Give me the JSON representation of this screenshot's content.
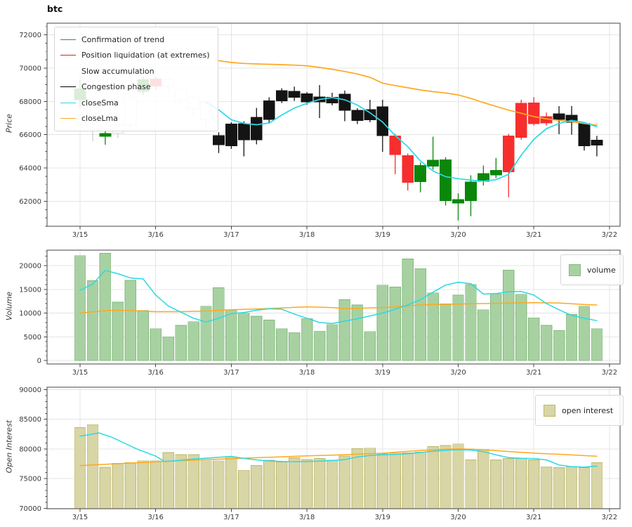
{
  "title": "btc",
  "axes": {
    "x_ticklabels": [
      "3/15",
      "3/16",
      "3/17",
      "3/18",
      "3/19",
      "3/20",
      "3/21",
      "3/22"
    ],
    "price": {
      "label": "Price",
      "ticks": [
        62000,
        64000,
        66000,
        68000,
        70000,
        72000
      ]
    },
    "volume": {
      "label": "Volume",
      "ticks": [
        0,
        5000,
        10000,
        15000,
        20000
      ]
    },
    "open_interest": {
      "label": "Open Interest",
      "ticks": [
        70000,
        75000,
        80000,
        85000,
        90000
      ]
    }
  },
  "legends": {
    "price": [
      {
        "label": "Confirmation of trend",
        "color": "#3b8c3e"
      },
      {
        "label": "Position liquidation (at extremes)",
        "color": "#b33028"
      },
      {
        "label": "Slow accumulation",
        "color": null
      },
      {
        "label": "Congestion phase",
        "color": "#000000"
      },
      {
        "label": "closeSma",
        "color": "#2bd9e4"
      },
      {
        "label": "closeLma",
        "color": "#ffa81f"
      }
    ],
    "volume": {
      "label": "volume"
    },
    "open_interest": {
      "label": "open interest"
    }
  },
  "colors": {
    "grid": "#e4e4e4",
    "spine": "#444444",
    "tick_label": "#3a3a3a",
    "sma_line": "#2bd9e4",
    "lma_line": "#ffa81f",
    "volume_bar_fill": "#a8d1a2",
    "volume_bar_edge": "#82ba7c",
    "oi_bar_fill": "#d8d5a6",
    "oi_bar_edge": "#bdb76b",
    "candles": {
      "confirmation_of_trend": {
        "fill": "#0a870a",
        "edge": "#0a870a",
        "wick": "#0a870a"
      },
      "position_liquidation": {
        "fill": "#f62e2e",
        "edge": "#f62e2e",
        "wick": "#f62e2e"
      },
      "congestion": {
        "fill": "#141414",
        "edge": "#141414",
        "wick": "#141414"
      },
      "slow_accumulation": {
        "fill": "#ffffff",
        "edge": "#d9d9d9",
        "wick": "#cfcfcf"
      }
    }
  },
  "chart_data": {
    "type": "candlestick",
    "title": "btc",
    "x_axis": {
      "start": "3/15",
      "end": "3/22",
      "bars_per_day": 6,
      "tick_labels": [
        "3/15",
        "3/16",
        "3/17",
        "3/18",
        "3/19",
        "3/20",
        "3/21",
        "3/22"
      ]
    },
    "panels": {
      "price": {
        "ylabel": "Price",
        "ylim": [
          60500,
          72700
        ],
        "yticks": [
          62000,
          64000,
          66000,
          68000,
          70000,
          72000
        ]
      },
      "volume": {
        "ylabel": "Volume",
        "ylim": [
          -740,
          23260
        ],
        "yticks": [
          0,
          5000,
          10000,
          15000,
          20000
        ]
      },
      "open_interest": {
        "ylabel": "Open Interest",
        "ylim": [
          69920,
          90420
        ],
        "yticks": [
          70000,
          75000,
          80000,
          85000,
          90000
        ]
      }
    },
    "phase_legend": [
      "Confirmation of trend",
      "Position liquidation (at extremes)",
      "Slow accumulation",
      "Congestion phase"
    ],
    "candles": [
      {
        "phase": "confirmation_of_trend",
        "body": [
          68100,
          68750
        ],
        "low": 67600,
        "high": 69300
      },
      {
        "phase": "slow_accumulation",
        "body": [
          67300,
          68100
        ],
        "low": 65600,
        "high": 68300
      },
      {
        "phase": "confirmation_of_trend",
        "body": [
          65900,
          66080
        ],
        "low": 65400,
        "high": 66300
      },
      {
        "phase": "slow_accumulation",
        "body": [
          66100,
          66600
        ],
        "low": 65800,
        "high": 66800
      },
      {
        "phase": "slow_accumulation",
        "body": [
          66600,
          68200
        ],
        "low": 66400,
        "high": 68400
      },
      {
        "phase": "confirmation_of_trend",
        "body": [
          68600,
          69300
        ],
        "low": 68400,
        "high": 69500
      },
      {
        "phase": "position_liquidation",
        "body": [
          68925,
          69345
        ],
        "low": 68700,
        "high": 69500
      },
      {
        "phase": "slow_accumulation",
        "body": [
          68900,
          69300
        ],
        "low": 68500,
        "high": 69400
      },
      {
        "phase": "slow_accumulation",
        "body": [
          68100,
          68700
        ],
        "low": 67800,
        "high": 68800
      },
      {
        "phase": "slow_accumulation",
        "body": [
          67550,
          68250
        ],
        "low": 67100,
        "high": 68350
      },
      {
        "phase": "slow_accumulation",
        "body": [
          66900,
          67950
        ],
        "low": 66200,
        "high": 68000
      },
      {
        "phase": "congestion",
        "body": [
          65390,
          65950
        ],
        "low": 64900,
        "high": 66150
      },
      {
        "phase": "congestion",
        "body": [
          65330,
          66650
        ],
        "low": 65150,
        "high": 66750
      },
      {
        "phase": "congestion",
        "body": [
          65700,
          66670
        ],
        "low": 64700,
        "high": 66800
      },
      {
        "phase": "congestion",
        "body": [
          65700,
          67050
        ],
        "low": 65420,
        "high": 67610
      },
      {
        "phase": "congestion",
        "body": [
          66920,
          68030
        ],
        "low": 66670,
        "high": 68250
      },
      {
        "phase": "congestion",
        "body": [
          68030,
          68650
        ],
        "low": 67900,
        "high": 68790
      },
      {
        "phase": "congestion",
        "body": [
          68240,
          68610
        ],
        "low": 68030,
        "high": 68890
      },
      {
        "phase": "congestion",
        "body": [
          67960,
          68450
        ],
        "low": 67800,
        "high": 68560
      },
      {
        "phase": "congestion",
        "body": [
          67960,
          68280
        ],
        "low": 67000,
        "high": 68980
      },
      {
        "phase": "congestion",
        "body": [
          67900,
          68250
        ],
        "low": 67760,
        "high": 68520
      },
      {
        "phase": "congestion",
        "body": [
          67470,
          68440
        ],
        "low": 66810,
        "high": 68650
      },
      {
        "phase": "congestion",
        "body": [
          66850,
          67470
        ],
        "low": 66640,
        "high": 67590
      },
      {
        "phase": "congestion",
        "body": [
          66890,
          67500
        ],
        "low": 66750,
        "high": 68100
      },
      {
        "phase": "congestion",
        "body": [
          65950,
          67680
        ],
        "low": 64970,
        "high": 68100
      },
      {
        "phase": "position_liquidation",
        "body": [
          64810,
          65920
        ],
        "low": 63630,
        "high": 66050
      },
      {
        "phase": "position_liquidation",
        "body": [
          63140,
          64740
        ],
        "low": 62650,
        "high": 64870
      },
      {
        "phase": "confirmation_of_trend",
        "body": [
          63180,
          64160
        ],
        "low": 62540,
        "high": 64330
      },
      {
        "phase": "confirmation_of_trend",
        "body": [
          64110,
          64460
        ],
        "low": 63900,
        "high": 65880
      },
      {
        "phase": "confirmation_of_trend",
        "body": [
          62030,
          64490
        ],
        "low": 61750,
        "high": 64650
      },
      {
        "phase": "confirmation_of_trend",
        "body": [
          61900,
          62110
        ],
        "low": 60850,
        "high": 62480
      },
      {
        "phase": "confirmation_of_trend",
        "body": [
          62030,
          63160
        ],
        "low": 61100,
        "high": 63560
      },
      {
        "phase": "confirmation_of_trend",
        "body": [
          63210,
          63670
        ],
        "low": 62950,
        "high": 64150
      },
      {
        "phase": "confirmation_of_trend",
        "body": [
          63570,
          63850
        ],
        "low": 63400,
        "high": 64600
      },
      {
        "phase": "position_liquidation",
        "body": [
          63760,
          65930
        ],
        "low": 62240,
        "high": 66050
      },
      {
        "phase": "position_liquidation",
        "body": [
          65830,
          67890
        ],
        "low": 65700,
        "high": 68100
      },
      {
        "phase": "position_liquidation",
        "body": [
          66670,
          67920
        ],
        "low": 66550,
        "high": 68260
      },
      {
        "phase": "position_liquidation",
        "body": [
          66710,
          67080
        ],
        "low": 66550,
        "high": 67330
      },
      {
        "phase": "congestion",
        "body": [
          66920,
          67260
        ],
        "low": 66030,
        "high": 67720
      },
      {
        "phase": "congestion",
        "body": [
          66750,
          67170
        ],
        "low": 66000,
        "high": 67720
      },
      {
        "phase": "congestion",
        "body": [
          65330,
          66670
        ],
        "low": 65050,
        "high": 66750
      },
      {
        "phase": "congestion",
        "body": [
          65380,
          65680
        ],
        "low": 64700,
        "high": 65930
      }
    ],
    "price_sma": {
      "name": "closeSma",
      "start_index": 10,
      "values": [
        67950,
        67500,
        66900,
        66680,
        66600,
        66700,
        67180,
        67600,
        67890,
        68120,
        68230,
        68100,
        67780,
        67320,
        66760,
        65950,
        65280,
        64430,
        63820,
        63480,
        63360,
        63270,
        63210,
        63300,
        63620,
        64780,
        65720,
        66360,
        66680,
        66860,
        66730,
        66480
      ]
    },
    "price_lma": {
      "name": "closeLma",
      "start_index": 11,
      "values": [
        70450,
        70340,
        70280,
        70250,
        70230,
        70210,
        70180,
        70140,
        70040,
        69930,
        69800,
        69650,
        69450,
        69100,
        68950,
        68820,
        68690,
        68590,
        68510,
        68390,
        68180,
        67930,
        67700,
        67480,
        67290,
        67090,
        66950,
        66860,
        66780,
        66670,
        66570
      ]
    },
    "volume": [
      22100,
      16800,
      22600,
      12300,
      16900,
      10500,
      6700,
      5000,
      7400,
      8200,
      11450,
      15350,
      10650,
      9950,
      9350,
      8500,
      6700,
      5900,
      8850,
      6200,
      7600,
      12800,
      11700,
      6100,
      15900,
      15500,
      21400,
      19350,
      14250,
      11950,
      13800,
      16000,
      10700,
      14050,
      19050,
      13950,
      9000,
      7400,
      6300,
      9700,
      11450,
      6700
    ],
    "volume_sma": {
      "start_index": 0,
      "values": [
        14800,
        16100,
        19000,
        18300,
        17400,
        17200,
        13800,
        11500,
        10200,
        8900,
        8100,
        8900,
        9900,
        10100,
        10600,
        10900,
        10800,
        9800,
        8900,
        8000,
        7800,
        8300,
        8800,
        9400,
        10000,
        10800,
        11700,
        12800,
        14400,
        15900,
        16500,
        16200,
        14000,
        14100,
        14500,
        14550,
        13800,
        12000,
        10700,
        9500,
        8900,
        8400
      ]
    },
    "volume_lma": {
      "points": [
        [
          0,
          10000
        ],
        [
          2,
          10500
        ],
        [
          3,
          10600
        ],
        [
          5,
          10400
        ],
        [
          6,
          10300
        ],
        [
          8,
          10300
        ],
        [
          10,
          10400
        ],
        [
          12,
          10700
        ],
        [
          14,
          10850
        ],
        [
          16,
          11050
        ],
        [
          17,
          11200
        ],
        [
          18,
          11300
        ],
        [
          19,
          11250
        ],
        [
          20,
          11150
        ],
        [
          21,
          10950
        ],
        [
          22,
          11000
        ],
        [
          24,
          11150
        ],
        [
          25,
          11300
        ],
        [
          26,
          11500
        ],
        [
          27,
          11700
        ],
        [
          28,
          11800
        ],
        [
          29,
          11850
        ],
        [
          30,
          11900
        ],
        [
          31,
          11950
        ],
        [
          33,
          12050
        ],
        [
          34,
          12100
        ],
        [
          35,
          12150
        ],
        [
          36,
          12200
        ],
        [
          37,
          12150
        ],
        [
          38,
          12100
        ],
        [
          39,
          11950
        ],
        [
          40,
          11800
        ],
        [
          41,
          11700
        ]
      ]
    },
    "open_interest": [
      83600,
      84100,
      76900,
      77600,
      77700,
      78000,
      78000,
      79400,
      79050,
      79050,
      78000,
      78000,
      78650,
      76400,
      77200,
      78100,
      77800,
      78500,
      78200,
      78400,
      78100,
      78800,
      80050,
      80150,
      79150,
      79300,
      79350,
      79500,
      80400,
      80600,
      80850,
      78150,
      79900,
      78150,
      78380,
      78380,
      78150,
      77000,
      76850,
      77000,
      76850,
      77690
    ],
    "oi_sma": {
      "points": [
        [
          0,
          82150
        ],
        [
          1,
          82500
        ],
        [
          1.5,
          82700
        ],
        [
          2.5,
          82000
        ],
        [
          3.5,
          81000
        ],
        [
          4.5,
          80000
        ],
        [
          5.5,
          79200
        ],
        [
          6,
          78800
        ],
        [
          6.7,
          77900
        ],
        [
          7.5,
          78000
        ],
        [
          9,
          78300
        ],
        [
          11,
          78600
        ],
        [
          12,
          78750
        ],
        [
          13,
          78400
        ],
        [
          14,
          78150
        ],
        [
          15,
          77980
        ],
        [
          16,
          77880
        ],
        [
          17,
          77850
        ],
        [
          18,
          77880
        ],
        [
          19,
          77950
        ],
        [
          20,
          78050
        ],
        [
          21,
          78200
        ],
        [
          22,
          78650
        ],
        [
          23,
          78900
        ],
        [
          24,
          79020
        ],
        [
          25,
          79070
        ],
        [
          26,
          79200
        ],
        [
          27,
          79400
        ],
        [
          28,
          79600
        ],
        [
          29,
          79780
        ],
        [
          30,
          79870
        ],
        [
          31,
          79820
        ],
        [
          32,
          79550
        ],
        [
          33,
          79000
        ],
        [
          34,
          78550
        ],
        [
          35,
          78420
        ],
        [
          36,
          78380
        ],
        [
          37,
          78150
        ],
        [
          38,
          77300
        ],
        [
          39,
          77020
        ],
        [
          40,
          76930
        ],
        [
          41,
          77120
        ]
      ]
    },
    "oi_lma": {
      "points": [
        [
          0,
          77200
        ],
        [
          2,
          77420
        ],
        [
          4,
          77620
        ],
        [
          6,
          77820
        ],
        [
          8,
          78020
        ],
        [
          10,
          78200
        ],
        [
          12,
          78360
        ],
        [
          14,
          78520
        ],
        [
          16,
          78680
        ],
        [
          18,
          78830
        ],
        [
          20,
          78960
        ],
        [
          22,
          79120
        ],
        [
          24,
          79280
        ],
        [
          26,
          79600
        ],
        [
          28,
          79850
        ],
        [
          29,
          79950
        ],
        [
          30,
          80000
        ],
        [
          31,
          79960
        ],
        [
          32,
          79860
        ],
        [
          33,
          79720
        ],
        [
          34,
          79560
        ],
        [
          35,
          79430
        ],
        [
          36,
          79300
        ],
        [
          37,
          79200
        ],
        [
          38,
          79100
        ],
        [
          39,
          79000
        ],
        [
          40,
          78880
        ],
        [
          41,
          78770
        ]
      ]
    }
  }
}
